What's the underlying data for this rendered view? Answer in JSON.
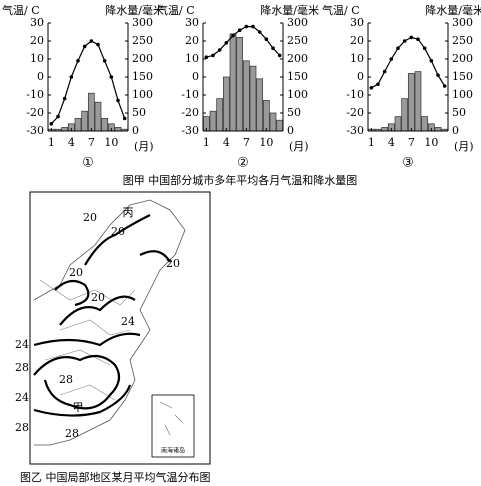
{
  "chart_data": [
    {
      "type": "bar_line",
      "label": "①",
      "y_label": "气温/ C",
      "y2_label": "降水量/毫米",
      "x_label": "(月)",
      "x": [
        1,
        2,
        3,
        4,
        5,
        6,
        7,
        8,
        9,
        10,
        11,
        12
      ],
      "xlim": [
        0.5,
        12.5
      ],
      "xticks": [
        1,
        4,
        7,
        10
      ],
      "ylim": [
        -30,
        30
      ],
      "yticks": [
        -30,
        -20,
        -10,
        0,
        10,
        20,
        30
      ],
      "y2lim": [
        0,
        300
      ],
      "y2ticks": [
        0,
        50,
        100,
        150,
        200,
        250,
        300
      ],
      "series": [
        {
          "type": "bar",
          "axis": "y2",
          "color": "#9a9a9a",
          "values": [
            5,
            5,
            10,
            20,
            35,
            55,
            105,
            80,
            35,
            20,
            10,
            5
          ]
        },
        {
          "type": "line",
          "color": "#000000",
          "values": [
            -26,
            -22,
            -12,
            0,
            9,
            17,
            20,
            18,
            9,
            0,
            -13,
            -23
          ]
        }
      ]
    },
    {
      "type": "bar_line",
      "label": "②",
      "y_label": "气温/ C",
      "y2_label": "降水量/毫米",
      "x_label": "(月)",
      "x": [
        1,
        2,
        3,
        4,
        5,
        6,
        7,
        8,
        9,
        10,
        11,
        12
      ],
      "xlim": [
        0.5,
        12.5
      ],
      "xticks": [
        1,
        4,
        7,
        10
      ],
      "ylim": [
        -30,
        30
      ],
      "yticks": [
        -30,
        -20,
        -10,
        0,
        10,
        20,
        30
      ],
      "y2lim": [
        0,
        300
      ],
      "y2ticks": [
        0,
        50,
        100,
        150,
        200,
        250,
        300
      ],
      "series": [
        {
          "type": "bar",
          "axis": "y2",
          "color": "#9a9a9a",
          "values": [
            40,
            55,
            90,
            150,
            270,
            260,
            195,
            180,
            145,
            85,
            50,
            30
          ]
        },
        {
          "type": "line",
          "color": "#000000",
          "values": [
            11,
            12,
            15,
            19,
            23,
            26,
            28,
            28,
            25,
            21,
            16,
            12
          ]
        }
      ]
    },
    {
      "type": "bar_line",
      "label": "③",
      "y_label": "气温/ C",
      "y2_label": "降水量/毫米",
      "x_label": "(月)",
      "x": [
        1,
        2,
        3,
        4,
        5,
        6,
        7,
        8,
        9,
        10,
        11,
        12
      ],
      "xlim": [
        0.5,
        12.5
      ],
      "xticks": [
        1,
        4,
        7,
        10
      ],
      "ylim": [
        -30,
        30
      ],
      "yticks": [
        -30,
        -20,
        -10,
        0,
        10,
        20,
        30
      ],
      "y2lim": [
        0,
        300
      ],
      "y2ticks": [
        0,
        50,
        100,
        150,
        200,
        250,
        300
      ],
      "series": [
        {
          "type": "bar",
          "axis": "y2",
          "color": "#9a9a9a",
          "values": [
            5,
            5,
            10,
            20,
            40,
            90,
            160,
            165,
            40,
            20,
            10,
            5
          ]
        },
        {
          "type": "line",
          "color": "#000000",
          "values": [
            -6,
            -4,
            3,
            10,
            16,
            20,
            22,
            21,
            16,
            9,
            1,
            -5
          ]
        }
      ]
    }
  ],
  "caption_a": "图甲  中国部分城市多年平均各月气温和降水量图",
  "map": {
    "caption": "图乙  中国局部地区某月平均气温分布图",
    "labels": [
      "丙",
      "20",
      "20",
      "20",
      "20",
      "20",
      "24",
      "24",
      "28",
      "24",
      "28",
      "28",
      "甲",
      "28"
    ],
    "inset": "南海诸岛"
  }
}
